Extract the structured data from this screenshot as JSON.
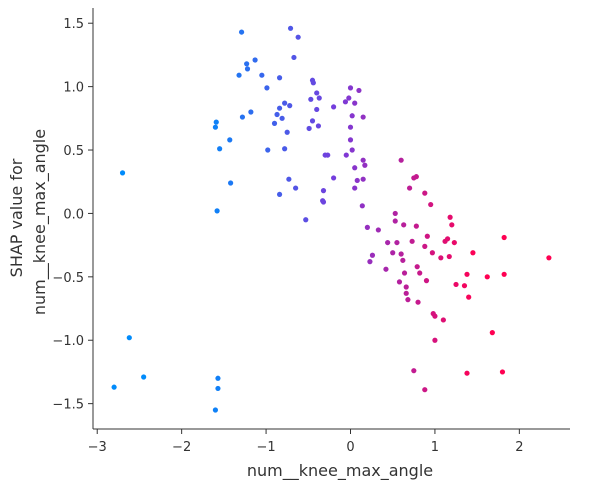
{
  "chart_data": {
    "type": "scatter",
    "title": "",
    "xlabel": "num__knee_max_angle",
    "ylabel_lines": [
      "SHAP value for",
      "num__knee_max_angle"
    ],
    "xlim": [
      -3.05,
      2.6
    ],
    "ylim": [
      -1.7,
      1.62
    ],
    "x_ticks": [
      -3,
      -2,
      -1,
      0,
      1,
      2
    ],
    "x_tick_labels": [
      "−3",
      "−2",
      "−1",
      "0",
      "1",
      "2"
    ],
    "y_ticks": [
      -1.5,
      -1.0,
      -0.5,
      0.0,
      0.5,
      1.0,
      1.5
    ],
    "y_tick_labels": [
      "−1.5",
      "−1.0",
      "−0.5",
      "0.0",
      "0.5",
      "1.0",
      "1.5"
    ],
    "grid": false,
    "color_scale": [
      "#008bfb",
      "#ff0052"
    ],
    "color_range": [
      -1.8,
      1.5
    ],
    "series": [
      {
        "points": [
          [
            -2.7,
            0.32
          ],
          [
            -2.62,
            -0.98
          ],
          [
            -2.45,
            -1.29
          ],
          [
            -2.8,
            -1.37
          ],
          [
            -1.57,
            -1.3
          ],
          [
            -1.57,
            -1.38
          ],
          [
            -1.6,
            -1.55
          ],
          [
            -1.6,
            0.68
          ],
          [
            -1.59,
            0.72
          ],
          [
            -1.55,
            0.51
          ],
          [
            -1.43,
            0.58
          ],
          [
            -1.42,
            0.24
          ],
          [
            -1.58,
            0.02
          ],
          [
            -1.29,
            1.43
          ],
          [
            -1.32,
            1.09
          ],
          [
            -1.23,
            1.18
          ],
          [
            -1.22,
            1.14
          ],
          [
            -1.13,
            1.21
          ],
          [
            -1.05,
            1.09
          ],
          [
            -1.18,
            0.8
          ],
          [
            -1.28,
            0.76
          ],
          [
            -0.99,
            0.99
          ],
          [
            -0.9,
            0.71
          ],
          [
            -0.84,
            0.83
          ],
          [
            -0.81,
            0.75
          ],
          [
            -0.87,
            0.78
          ],
          [
            -0.78,
            0.87
          ],
          [
            -0.75,
            0.64
          ],
          [
            -0.98,
            0.5
          ],
          [
            -0.78,
            0.51
          ],
          [
            -0.71,
            1.46
          ],
          [
            -0.62,
            1.39
          ],
          [
            -0.67,
            1.23
          ],
          [
            -0.84,
            1.07
          ],
          [
            -0.72,
            0.85
          ],
          [
            -0.73,
            0.27
          ],
          [
            -0.84,
            0.15
          ],
          [
            -0.65,
            0.2
          ],
          [
            -0.53,
            -0.05
          ],
          [
            -0.45,
            1.05
          ],
          [
            -0.44,
            1.03
          ],
          [
            -0.4,
            0.95
          ],
          [
            -0.37,
            0.91
          ],
          [
            -0.47,
            0.9
          ],
          [
            -0.45,
            0.73
          ],
          [
            -0.4,
            0.82
          ],
          [
            -0.49,
            0.67
          ],
          [
            -0.38,
            0.69
          ],
          [
            -0.3,
            0.46
          ],
          [
            -0.27,
            0.46
          ],
          [
            -0.32,
            0.18
          ],
          [
            -0.33,
            0.1
          ],
          [
            -0.32,
            0.09
          ],
          [
            -0.2,
            0.28
          ],
          [
            0.0,
            0.99
          ],
          [
            -0.06,
            0.88
          ],
          [
            0.1,
            0.97
          ],
          [
            0.05,
            0.87
          ],
          [
            -0.02,
            0.91
          ],
          [
            -0.2,
            0.84
          ],
          [
            0.02,
            0.77
          ],
          [
            0.15,
            0.76
          ],
          [
            0.0,
            0.68
          ],
          [
            0.0,
            0.58
          ],
          [
            0.02,
            0.5
          ],
          [
            -0.05,
            0.46
          ],
          [
            0.05,
            0.36
          ],
          [
            0.15,
            0.42
          ],
          [
            0.17,
            0.38
          ],
          [
            0.08,
            0.26
          ],
          [
            0.15,
            0.27
          ],
          [
            0.05,
            0.2
          ],
          [
            0.14,
            0.06
          ],
          [
            0.2,
            -0.11
          ],
          [
            0.23,
            -0.38
          ],
          [
            0.26,
            -0.33
          ],
          [
            0.33,
            -0.13
          ],
          [
            0.42,
            -0.44
          ],
          [
            0.44,
            -0.23
          ],
          [
            0.5,
            -0.31
          ],
          [
            0.53,
            0.0
          ],
          [
            0.53,
            -0.06
          ],
          [
            0.55,
            -0.23
          ],
          [
            0.58,
            -0.54
          ],
          [
            0.6,
            0.42
          ],
          [
            0.6,
            -0.32
          ],
          [
            0.62,
            -0.37
          ],
          [
            0.63,
            -0.09
          ],
          [
            0.64,
            -0.47
          ],
          [
            0.66,
            -0.63
          ],
          [
            0.66,
            -0.58
          ],
          [
            0.68,
            -0.68
          ],
          [
            0.7,
            0.2
          ],
          [
            0.73,
            -0.22
          ],
          [
            0.75,
            0.28
          ],
          [
            0.78,
            0.29
          ],
          [
            0.78,
            -0.1
          ],
          [
            0.79,
            -0.42
          ],
          [
            0.8,
            -0.7
          ],
          [
            0.82,
            -0.47
          ],
          [
            0.88,
            -0.26
          ],
          [
            0.88,
            0.16
          ],
          [
            0.9,
            -0.53
          ],
          [
            0.91,
            -0.18
          ],
          [
            0.95,
            0.07
          ],
          [
            0.97,
            -0.31
          ],
          [
            0.98,
            -0.79
          ],
          [
            1.0,
            -0.81
          ],
          [
            0.75,
            -1.24
          ],
          [
            0.88,
            -1.39
          ],
          [
            1.0,
            -1.0
          ],
          [
            1.07,
            -0.35
          ],
          [
            1.1,
            -0.84
          ],
          [
            1.12,
            -0.22
          ],
          [
            1.15,
            -0.2
          ],
          [
            1.17,
            -0.34
          ],
          [
            1.18,
            -0.03
          ],
          [
            1.2,
            -0.09
          ],
          [
            1.23,
            -0.23
          ],
          [
            1.25,
            -0.56
          ],
          [
            1.35,
            -0.57
          ],
          [
            1.38,
            -0.48
          ],
          [
            1.38,
            -1.26
          ],
          [
            1.4,
            -0.66
          ],
          [
            1.45,
            -0.31
          ],
          [
            1.62,
            -0.5
          ],
          [
            1.68,
            -0.94
          ],
          [
            1.8,
            -1.25
          ],
          [
            1.82,
            -0.19
          ],
          [
            1.82,
            -0.48
          ],
          [
            2.35,
            -0.35
          ]
        ]
      }
    ]
  }
}
